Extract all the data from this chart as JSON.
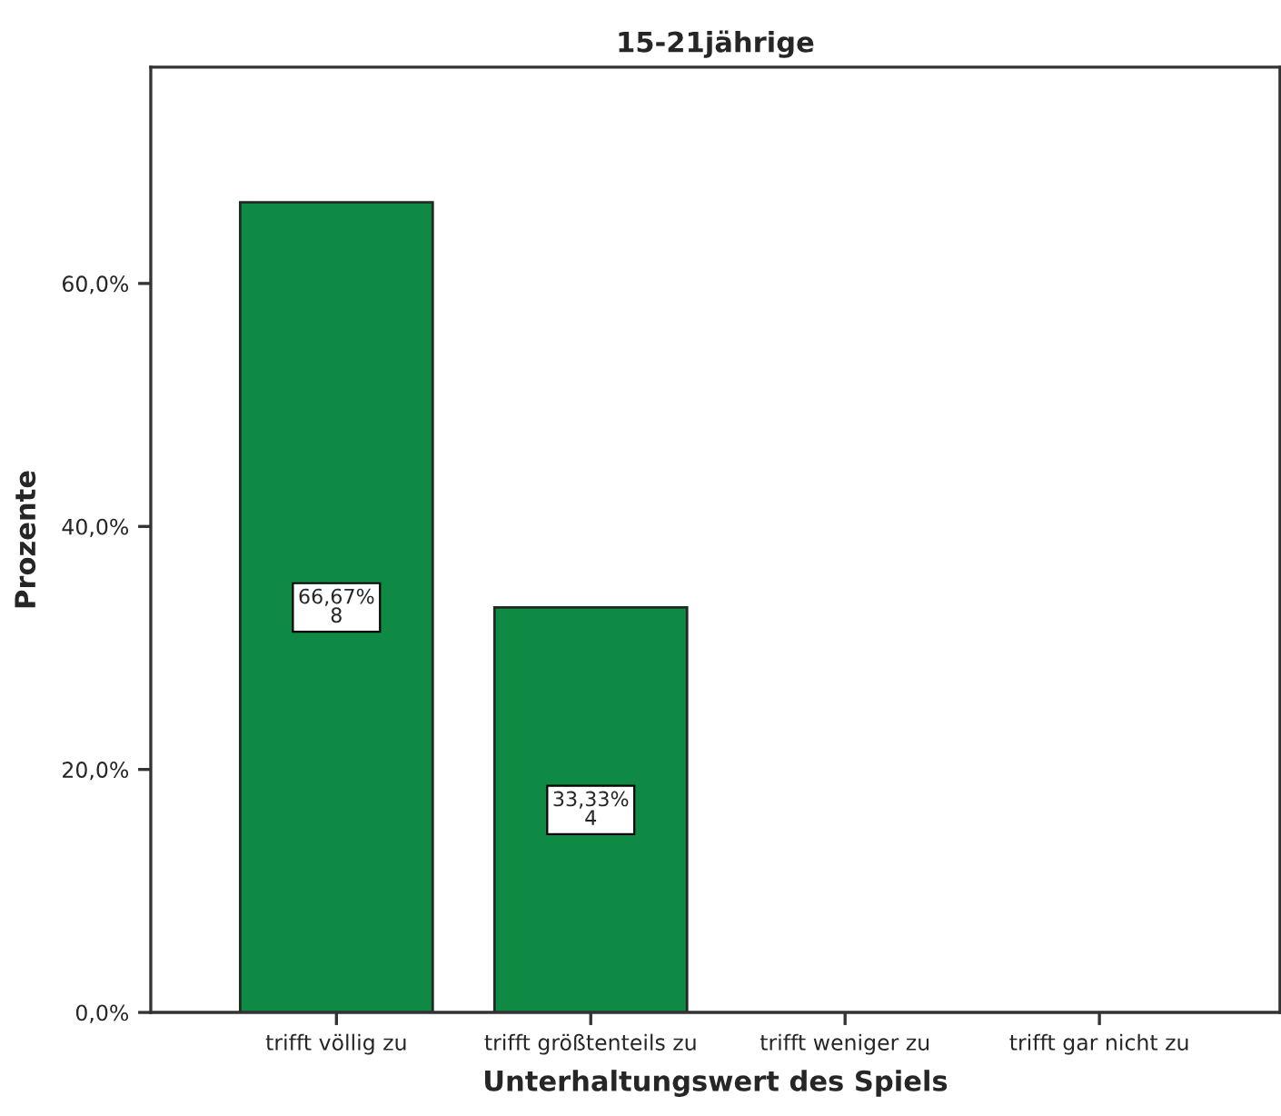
{
  "chart_data": {
    "type": "bar",
    "title": "15-21jährige",
    "xlabel": "Unterhaltungswert des Spiels",
    "ylabel": "Prozente",
    "categories": [
      "trifft völlig zu",
      "trifft größtenteils zu",
      "trifft weniger zu",
      "trifft gar nicht zu"
    ],
    "values": [
      66.67,
      33.33,
      0,
      0
    ],
    "value_labels": [
      "66,67%\n8",
      "33,33%\n4",
      null,
      null
    ],
    "color": "#0f8a45",
    "ylim": [
      0,
      77.8
    ],
    "yticks": [
      {
        "value": 0,
        "label": "0,0%"
      },
      {
        "value": 20,
        "label": "20,0%"
      },
      {
        "value": 40,
        "label": "40,0%"
      },
      {
        "value": 60,
        "label": "60,0%"
      }
    ],
    "grid": false
  }
}
